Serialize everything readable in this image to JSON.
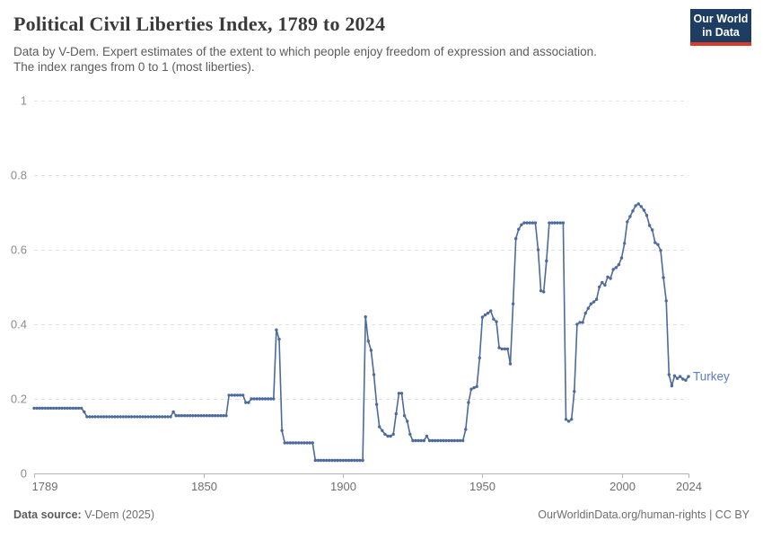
{
  "header": {
    "title": "Political Civil Liberties Index, 1789 to 2024",
    "subtitle_line1": "Data by V-Dem. Expert estimates of the extent to which people enjoy freedom of expression and association.",
    "subtitle_line2": "The index ranges from 0 to 1 (most liberties).",
    "logo": {
      "line1": "Our World",
      "line2": "in Data",
      "bg_color": "#1d3d63",
      "accent_color": "#dc3a28"
    }
  },
  "chart_data": {
    "type": "line",
    "title": "Political Civil Liberties Index, 1789 to 2024",
    "xlabel": "",
    "ylabel": "",
    "xlim": [
      1789,
      2024
    ],
    "ylim": [
      0,
      1
    ],
    "xticks": [
      1789,
      1850,
      1900,
      1950,
      2000,
      2024
    ],
    "yticks": [
      0,
      0.2,
      0.4,
      0.6,
      0.8,
      1
    ],
    "grid": "horizontal-dashed",
    "gridline_color": "#e3e3e3",
    "axis_color": "#b3b3b3",
    "ytick_label_color": "#8c8c8c",
    "xtick_label_color": "#6e6e6e",
    "legend_position": "end-of-line-label",
    "marker": "point-per-year",
    "series": [
      {
        "name": "Turkey",
        "color": "#4c6a9c",
        "label_color": "#5c7db8",
        "x_start": 1789,
        "x_step": 1,
        "x_end": 2024,
        "values": [
          0.175,
          0.175,
          0.175,
          0.175,
          0.175,
          0.175,
          0.175,
          0.175,
          0.175,
          0.175,
          0.175,
          0.175,
          0.175,
          0.175,
          0.175,
          0.175,
          0.175,
          0.175,
          0.165,
          0.152,
          0.152,
          0.152,
          0.152,
          0.152,
          0.152,
          0.152,
          0.152,
          0.152,
          0.152,
          0.152,
          0.152,
          0.152,
          0.152,
          0.152,
          0.152,
          0.152,
          0.152,
          0.152,
          0.152,
          0.152,
          0.152,
          0.152,
          0.152,
          0.152,
          0.152,
          0.152,
          0.152,
          0.152,
          0.152,
          0.152,
          0.165,
          0.155,
          0.155,
          0.155,
          0.155,
          0.155,
          0.155,
          0.155,
          0.155,
          0.155,
          0.155,
          0.155,
          0.155,
          0.155,
          0.155,
          0.155,
          0.155,
          0.155,
          0.155,
          0.155,
          0.21,
          0.21,
          0.21,
          0.21,
          0.21,
          0.21,
          0.19,
          0.19,
          0.2,
          0.2,
          0.2,
          0.2,
          0.2,
          0.2,
          0.2,
          0.2,
          0.2,
          0.385,
          0.36,
          0.115,
          0.082,
          0.082,
          0.082,
          0.082,
          0.082,
          0.082,
          0.082,
          0.082,
          0.082,
          0.082,
          0.082,
          0.035,
          0.035,
          0.035,
          0.035,
          0.035,
          0.035,
          0.035,
          0.035,
          0.035,
          0.035,
          0.035,
          0.035,
          0.035,
          0.035,
          0.035,
          0.035,
          0.035,
          0.035,
          0.42,
          0.355,
          0.33,
          0.265,
          0.185,
          0.125,
          0.115,
          0.105,
          0.1,
          0.1,
          0.105,
          0.16,
          0.215,
          0.215,
          0.155,
          0.14,
          0.105,
          0.088,
          0.088,
          0.088,
          0.088,
          0.088,
          0.1,
          0.088,
          0.088,
          0.088,
          0.088,
          0.088,
          0.088,
          0.088,
          0.088,
          0.088,
          0.088,
          0.088,
          0.088,
          0.088,
          0.118,
          0.19,
          0.226,
          0.23,
          0.233,
          0.31,
          0.419,
          0.425,
          0.43,
          0.436,
          0.414,
          0.407,
          0.337,
          0.334,
          0.334,
          0.334,
          0.294,
          0.455,
          0.63,
          0.655,
          0.667,
          0.672,
          0.672,
          0.672,
          0.672,
          0.672,
          0.6,
          0.49,
          0.487,
          0.57,
          0.672,
          0.672,
          0.672,
          0.672,
          0.672,
          0.672,
          0.145,
          0.14,
          0.145,
          0.22,
          0.4,
          0.405,
          0.405,
          0.43,
          0.443,
          0.455,
          0.46,
          0.467,
          0.5,
          0.512,
          0.505,
          0.527,
          0.523,
          0.547,
          0.552,
          0.56,
          0.578,
          0.617,
          0.675,
          0.689,
          0.704,
          0.718,
          0.723,
          0.716,
          0.706,
          0.692,
          0.665,
          0.653,
          0.619,
          0.614,
          0.598,
          0.525,
          0.463,
          0.265,
          0.235,
          0.262,
          0.255,
          0.26,
          0.253,
          0.25,
          0.26
        ]
      }
    ]
  },
  "footer": {
    "source_label": "Data source:",
    "source_value": "V-Dem (2025)",
    "credit": "OurWorldinData.org/human-rights | CC BY"
  }
}
